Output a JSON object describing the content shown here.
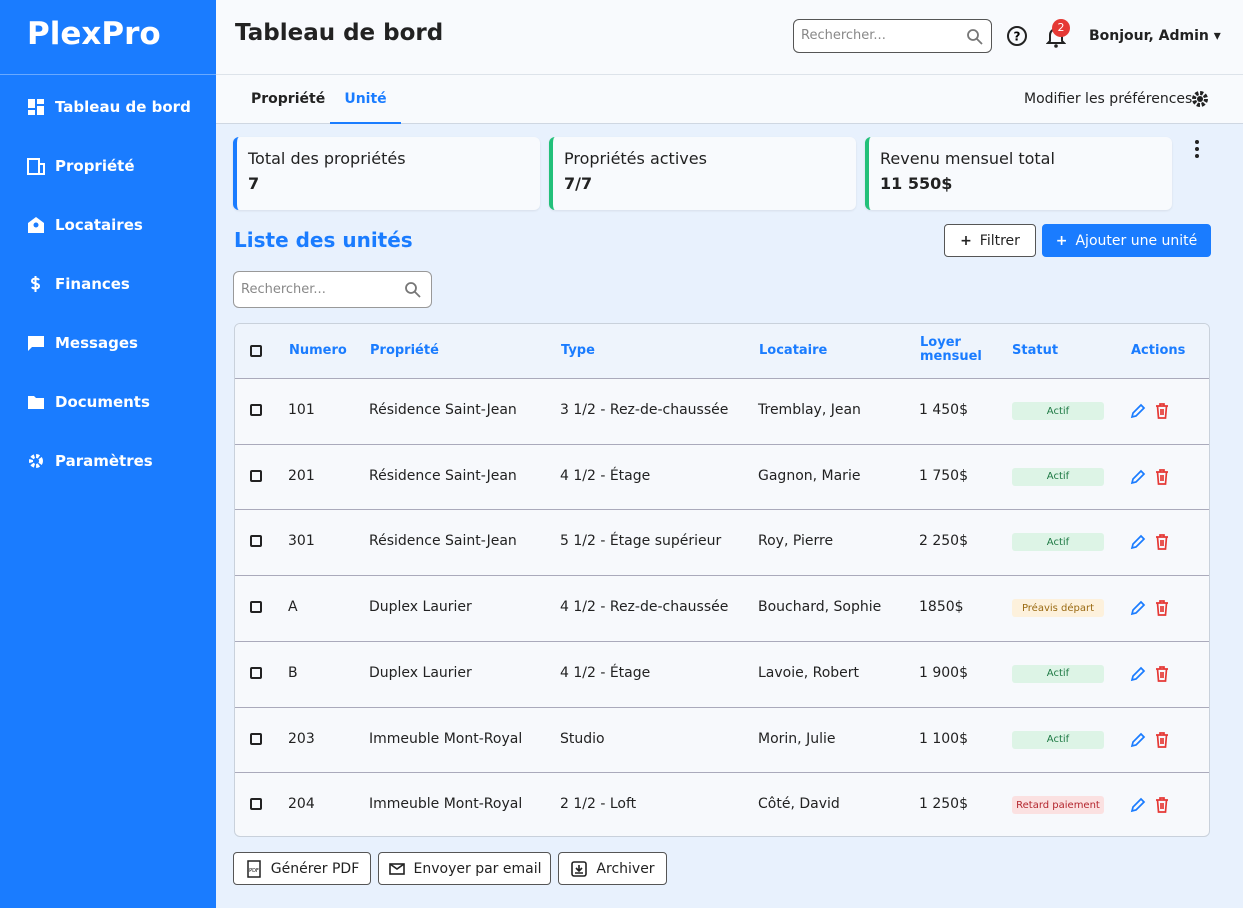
{
  "sidebar": {
    "logo": "PlexPro",
    "nav": [
      "Tableau de bord",
      "Propriété",
      "Locataires",
      "Finances",
      "Messages",
      "Documents",
      "Paramètres"
    ]
  },
  "header": {
    "title": "Tableau de bord",
    "search_placeholder": "Rechercher...",
    "notification_count": 2,
    "user": "Bonjour, Admin"
  },
  "tabs": {
    "items": [
      "Propriété",
      "Unité"
    ],
    "preferences": "Modifier les préférences"
  },
  "stats": [
    {
      "label": "Total des propriétés",
      "value": "7",
      "color": "#1a7cff"
    },
    {
      "label": "Propriétés actives",
      "value": "7/7",
      "color": "#22c07a"
    },
    {
      "label": "Revenu mensuel total",
      "value": "11 550$",
      "color": "#22c07a"
    }
  ],
  "list": {
    "title": "Liste des unités",
    "filter": "Filtrer",
    "add": "Ajouter une unité",
    "search_placeholder": "Rechercher..."
  },
  "table": {
    "headers": [
      "Numero",
      "Propriété",
      "Type",
      "Locataire",
      "Loyer mensuel",
      "Statut",
      "Actions"
    ],
    "rows": [
      {
        "cells": [
          "101",
          "Résidence Saint-Jean",
          "3 1/2 - Rez-de-chaussée",
          "Tremblay, Jean",
          "1 450$"
        ],
        "status": "Actif",
        "status_color": "#1f7a45",
        "status_bg": "#ddf4e6"
      },
      {
        "cells": [
          "201",
          "Résidence Saint-Jean",
          "4 1/2 - Étage",
          "Gagnon, Marie",
          "1 750$"
        ],
        "status": "Actif",
        "status_color": "#1f7a45",
        "status_bg": "#ddf4e6"
      },
      {
        "cells": [
          "301",
          "Résidence Saint-Jean",
          "5 1/2 - Étage supérieur",
          "Roy, Pierre",
          "2 250$"
        ],
        "status": "Actif",
        "status_color": "#1f7a45",
        "status_bg": "#ddf4e6"
      },
      {
        "cells": [
          "A",
          "Duplex Laurier",
          "4 1/2 - Rez-de-chaussée",
          "Bouchard, Sophie",
          "1850$"
        ],
        "status": "Préavis départ",
        "status_color": "#9a6a12",
        "status_bg": "#fdf1dc"
      },
      {
        "cells": [
          "B",
          "Duplex Laurier",
          "4 1/2 - Étage",
          "Lavoie, Robert",
          "1 900$"
        ],
        "status": "Actif",
        "status_color": "#1f7a45",
        "status_bg": "#ddf4e6"
      },
      {
        "cells": [
          "203",
          "Immeuble Mont-Royal",
          "Studio",
          "Morin, Julie",
          "1 100$"
        ],
        "status": "Actif",
        "status_color": "#1f7a45",
        "status_bg": "#ddf4e6"
      },
      {
        "cells": [
          "204",
          "Immeuble Mont-Royal",
          "2 1/2 - Loft",
          "Côté, David",
          "1 250$"
        ],
        "status": "Retard paiement",
        "status_color": "#b3262e",
        "status_bg": "#fbe1e1"
      }
    ]
  },
  "footer_actions": [
    "Générer PDF",
    "Envoyer par email",
    "Archiver"
  ]
}
